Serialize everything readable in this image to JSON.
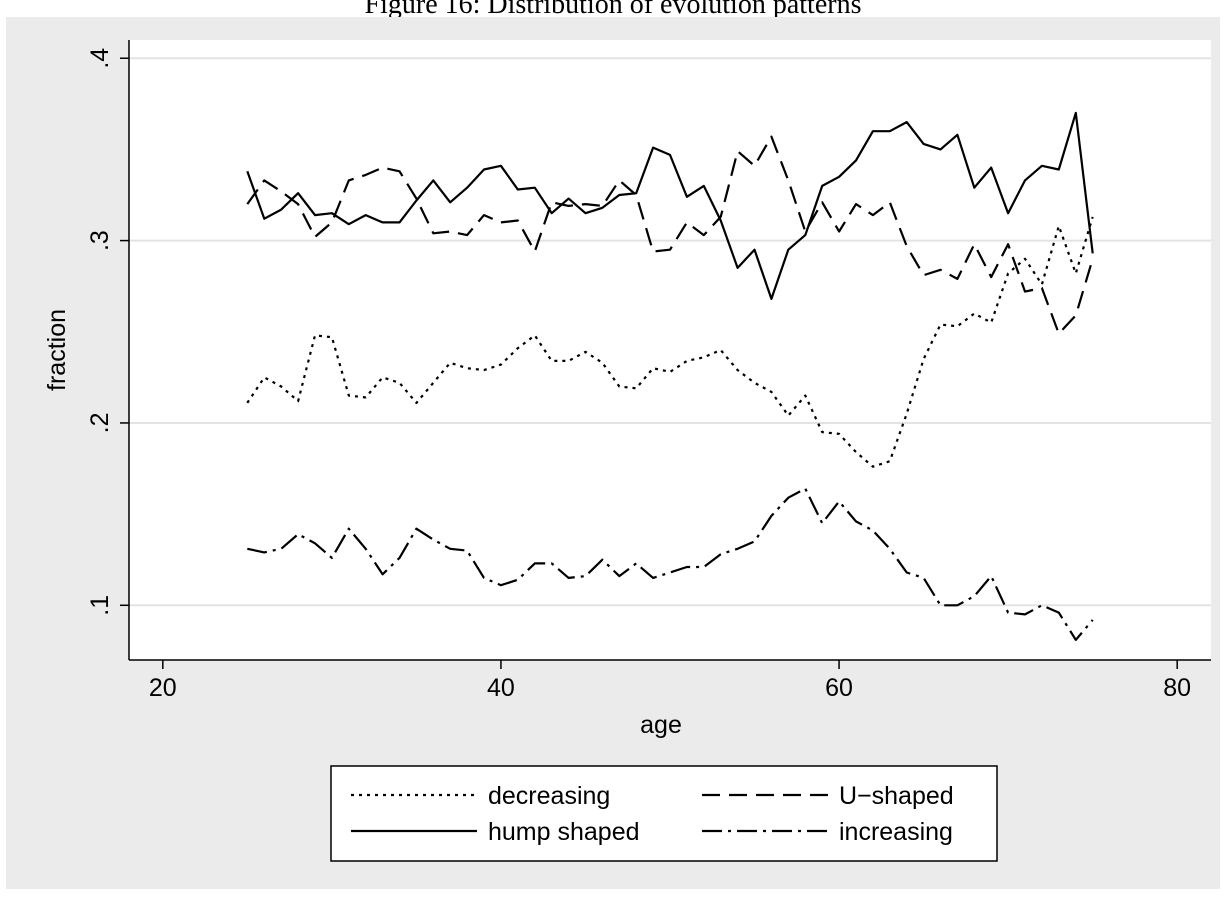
{
  "caption": "Figure 16: Distribution of evolution patterns",
  "chart_data": {
    "type": "line",
    "xlabel": "age",
    "ylabel": "fraction",
    "xlim": [
      18,
      82
    ],
    "ylim": [
      0.07,
      0.41
    ],
    "xticks": [
      20,
      40,
      60,
      80
    ],
    "xtick_labels": [
      "20",
      "40",
      "60",
      "80"
    ],
    "yticks": [
      0.1,
      0.2,
      0.3,
      0.4
    ],
    "ytick_labels": [
      ".1",
      ".2",
      ".3",
      ".4"
    ],
    "grid": "horizontal",
    "legend_position": "bottom",
    "x": [
      25,
      26,
      27,
      28,
      29,
      30,
      31,
      32,
      33,
      34,
      35,
      36,
      37,
      38,
      39,
      40,
      41,
      42,
      43,
      44,
      45,
      46,
      47,
      48,
      49,
      50,
      51,
      52,
      53,
      54,
      55,
      56,
      57,
      58,
      59,
      60,
      61,
      62,
      63,
      64,
      65,
      66,
      67,
      68,
      69,
      70,
      71,
      72,
      73,
      74,
      75
    ],
    "series": [
      {
        "name": "decreasing",
        "style": "dotted",
        "color": "#000000",
        "values": [
          0.211,
          0.225,
          0.22,
          0.212,
          0.248,
          0.247,
          0.215,
          0.214,
          0.225,
          0.222,
          0.211,
          0.222,
          0.233,
          0.23,
          0.229,
          0.232,
          0.241,
          0.248,
          0.234,
          0.234,
          0.239,
          0.233,
          0.22,
          0.219,
          0.23,
          0.228,
          0.234,
          0.236,
          0.24,
          0.229,
          0.222,
          0.217,
          0.204,
          0.215,
          0.195,
          0.194,
          0.184,
          0.176,
          0.179,
          0.205,
          0.235,
          0.254,
          0.253,
          0.26,
          0.255,
          0.282,
          0.29,
          0.276,
          0.308,
          0.282,
          0.313
        ]
      },
      {
        "name": "U−shaped",
        "style": "dashed",
        "color": "#000000",
        "values": [
          0.32,
          0.333,
          0.327,
          0.32,
          0.302,
          0.31,
          0.333,
          0.336,
          0.34,
          0.338,
          0.323,
          0.304,
          0.305,
          0.303,
          0.314,
          0.31,
          0.311,
          0.294,
          0.321,
          0.319,
          0.32,
          0.319,
          0.333,
          0.325,
          0.294,
          0.295,
          0.31,
          0.303,
          0.313,
          0.349,
          0.341,
          0.357,
          0.333,
          0.305,
          0.321,
          0.305,
          0.32,
          0.314,
          0.321,
          0.297,
          0.281,
          0.284,
          0.279,
          0.298,
          0.28,
          0.298,
          0.272,
          0.274,
          0.249,
          0.259,
          0.29
        ]
      },
      {
        "name": "hump shaped",
        "style": "solid",
        "color": "#000000",
        "values": [
          0.338,
          0.312,
          0.317,
          0.326,
          0.314,
          0.315,
          0.309,
          0.314,
          0.31,
          0.31,
          0.322,
          0.333,
          0.321,
          0.329,
          0.339,
          0.341,
          0.328,
          0.329,
          0.315,
          0.323,
          0.315,
          0.318,
          0.325,
          0.326,
          0.351,
          0.347,
          0.324,
          0.33,
          0.311,
          0.285,
          0.295,
          0.268,
          0.295,
          0.303,
          0.33,
          0.335,
          0.344,
          0.36,
          0.36,
          0.365,
          0.353,
          0.35,
          0.358,
          0.329,
          0.34,
          0.315,
          0.333,
          0.341,
          0.339,
          0.37,
          0.293
        ]
      },
      {
        "name": "increasing",
        "style": "dashdot",
        "color": "#000000",
        "values": [
          0.131,
          0.129,
          0.131,
          0.139,
          0.134,
          0.126,
          0.142,
          0.131,
          0.117,
          0.126,
          0.142,
          0.136,
          0.131,
          0.13,
          0.115,
          0.111,
          0.114,
          0.123,
          0.123,
          0.115,
          0.116,
          0.125,
          0.116,
          0.123,
          0.115,
          0.118,
          0.121,
          0.121,
          0.128,
          0.131,
          0.135,
          0.149,
          0.159,
          0.164,
          0.145,
          0.157,
          0.146,
          0.141,
          0.131,
          0.118,
          0.115,
          0.1,
          0.1,
          0.105,
          0.116,
          0.096,
          0.095,
          0.1,
          0.096,
          0.081,
          0.092
        ]
      }
    ]
  }
}
